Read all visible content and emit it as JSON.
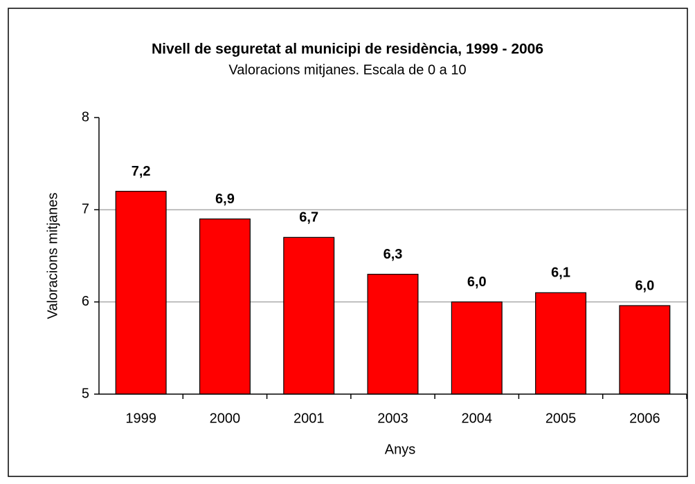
{
  "chart_data": {
    "type": "bar",
    "title": "Nivell de seguretat al municipi de residència, 1999 - 2006",
    "subtitle": "Valoracions mitjanes. Escala de 0 a 10",
    "x_label": "Anys",
    "y_label": "Valoracions mitjanes",
    "categories": [
      "1999",
      "2000",
      "2001",
      "2003",
      "2004",
      "2005",
      "2006"
    ],
    "values": [
      7.2,
      6.9,
      6.7,
      6.3,
      6.0,
      6.1,
      5.96
    ],
    "value_labels": [
      "7,2",
      "6,9",
      "6,7",
      "6,3",
      "6,0",
      "6,1",
      "6,0"
    ],
    "color": "#ff0000",
    "ylim": [
      5,
      8
    ],
    "yticks": [
      5,
      6,
      7,
      8
    ],
    "grid": true
  }
}
